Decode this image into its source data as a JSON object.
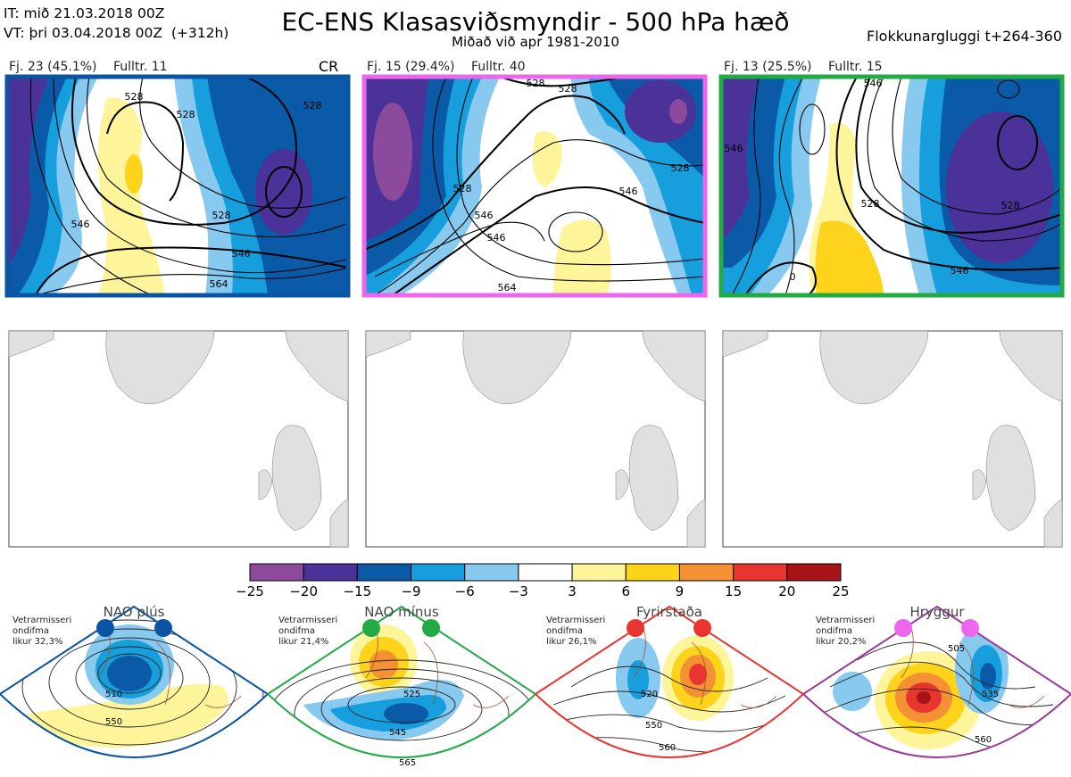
{
  "header": {
    "init_line": "IT: mið 21.03.2018 00Z",
    "valid_line": "VT: þri 03.04.2018 00Z  (+312h)",
    "title": "EC-ENS Klasasviðsmyndir - 500 hPa hæð",
    "subtitle": "Miðað við apr 1981-2010",
    "window": "Flokkunargluggi t+264-360"
  },
  "clusters": [
    {
      "count_label": "Fj. 23 (45.1%)",
      "rep_label": "Fulltr. 11",
      "tag": "CR",
      "border_color": "#0b54a4",
      "contours": [
        "528",
        "528",
        "528",
        "528",
        "546",
        "546",
        "564"
      ]
    },
    {
      "count_label": "Fj. 15 (29.4%)",
      "rep_label": "Fulltr. 40",
      "tag": "",
      "border_color": "#ee66ee",
      "contours": [
        "528",
        "528",
        "528",
        "528",
        "546",
        "546",
        "546",
        "564"
      ]
    },
    {
      "count_label": "Fj. 13 (25.5%)",
      "rep_label": "Fulltr. 15",
      "tag": "",
      "border_color": "#22aa44",
      "contours": [
        "546",
        "546",
        "528",
        "528",
        "546",
        "0"
      ]
    }
  ],
  "colorbar": {
    "ticks": [
      "−25",
      "−20",
      "−15",
      "−9",
      "−6",
      "−3",
      "3",
      "6",
      "9",
      "15",
      "20",
      "25"
    ],
    "colors": [
      "#8b4a9c",
      "#4a3299",
      "#0a5aa8",
      "#169fdc",
      "#88c9ef",
      "#ffffff",
      "#fef59a",
      "#fdd31c",
      "#f59135",
      "#e83530",
      "#a61418"
    ]
  },
  "regimes": [
    {
      "name": "NAO plús",
      "color": "#0b54a4",
      "stat": "Vetrarmisseri\nondifma\nlikur 32,3%",
      "contours": [
        "510",
        "550"
      ]
    },
    {
      "name": "NAO mínus",
      "color": "#22aa44",
      "stat": "Vetrarmisseri\nondifma\nlikur 21,4%",
      "contours": [
        "525",
        "545",
        "565"
      ]
    },
    {
      "name": "Fyrirstaða",
      "color": "#e83530",
      "stat": "Vetrarmisseri\nondifma\nlikur 26,1%",
      "contours": [
        "520",
        "550",
        "560"
      ]
    },
    {
      "name": "Hryggur",
      "color": "#9b3a9b",
      "stat": "Vetrarmisseri\nondifma\nlikur 20,2%",
      "contours": [
        "505",
        "535",
        "560"
      ]
    }
  ],
  "icons": {
    "regime_marker": "filled-circle-icon"
  }
}
